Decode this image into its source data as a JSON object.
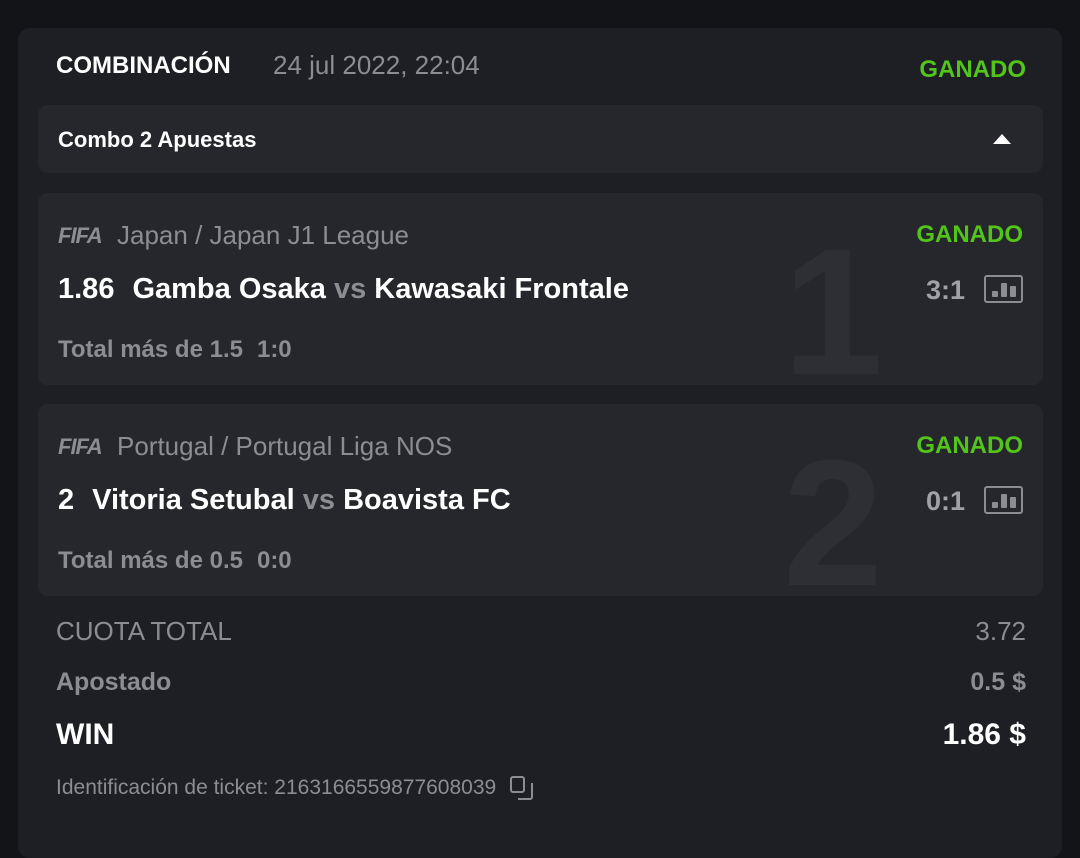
{
  "header": {
    "title": "COMBINACIÓN",
    "date": "24 jul 2022, 22:04",
    "status": "GANADO"
  },
  "combo": {
    "label": "Combo 2 Apuestas",
    "icon": "caret-up-icon"
  },
  "bets": [
    {
      "index": "1",
      "sport": "FIFA",
      "league": "Japan / Japan J1 League",
      "status": "GANADO",
      "odds": "1.86",
      "home": "Gamba Osaka",
      "vs": "vs",
      "away": "Kawasaki Frontale",
      "score": "3:1",
      "market": "Total más de 1.5",
      "market_score": "1:0"
    },
    {
      "index": "2",
      "sport": "FIFA",
      "league": "Portugal / Portugal Liga NOS",
      "status": "GANADO",
      "odds": "2",
      "home": "Vitoria Setubal",
      "vs": "vs",
      "away": "Boavista FC",
      "score": "0:1",
      "market": "Total más de 0.5",
      "market_score": "0:0"
    }
  ],
  "summary": {
    "total_odds_label": "CUOTA TOTAL",
    "total_odds": "3.72",
    "stake_label": "Apostado",
    "stake": "0.5 $",
    "win_label": "WIN",
    "win": "1.86 $"
  },
  "ticket": {
    "label": "Identificación de ticket:",
    "id": "2163166559877608039"
  },
  "colors": {
    "win": "#52c41a",
    "background": "#1e1f24"
  }
}
